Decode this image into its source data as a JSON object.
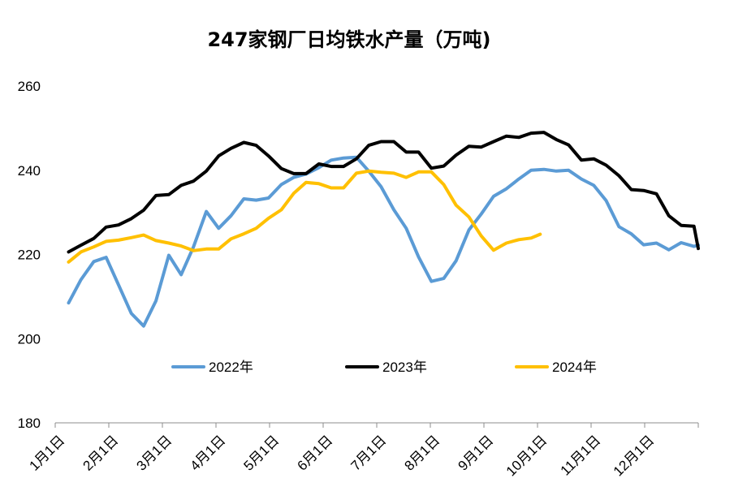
{
  "chart_data": {
    "type": "line",
    "title": "247家钢厂日均铁水产量（万吨)",
    "xlabel": "",
    "ylabel": "",
    "ylim": [
      180,
      260
    ],
    "yticks": [
      "180",
      "200",
      "220",
      "240",
      "260"
    ],
    "grid": false,
    "legend_position": "bottom-inside",
    "categories": [
      "1月1日",
      "2月1日",
      "3月1日",
      "4月1日",
      "5月1日",
      "6月1日",
      "7月1日",
      "8月1日",
      "9月1日",
      "10月1日",
      "11月1日",
      "12月1日"
    ],
    "x_domain": [
      1,
      13
    ],
    "series": [
      {
        "name": "2022年",
        "color": "#5b9bd5",
        "x": [
          1.25,
          1.48,
          1.72,
          1.95,
          2.18,
          2.42,
          2.65,
          2.88,
          3.12,
          3.35,
          3.58,
          3.82,
          4.05,
          4.28,
          4.52,
          4.75,
          4.98,
          5.22,
          5.45,
          5.68,
          5.92,
          6.15,
          6.38,
          6.62,
          6.85,
          7.08,
          7.32,
          7.55,
          7.78,
          8.02,
          8.25,
          8.48,
          8.72,
          8.95,
          9.18,
          9.42,
          9.65,
          9.88,
          10.12,
          10.35,
          10.58,
          10.82,
          11.05,
          11.28,
          11.52,
          11.75,
          11.98,
          12.22,
          12.45,
          12.68,
          12.92,
          13.0
        ],
        "values": [
          208.5,
          214.0,
          218.3,
          219.3,
          212.8,
          206.0,
          203.0,
          209.0,
          219.8,
          215.2,
          221.8,
          230.2,
          226.2,
          229.2,
          233.2,
          232.9,
          233.4,
          236.6,
          238.3,
          239.1,
          240.6,
          242.4,
          242.9,
          243.1,
          239.8,
          236.1,
          230.6,
          226.2,
          219.4,
          213.6,
          214.3,
          218.5,
          225.8,
          229.6,
          233.8,
          235.6,
          237.9,
          240.0,
          240.2,
          239.8,
          240.0,
          237.9,
          236.4,
          232.8,
          226.6,
          224.9,
          222.3,
          222.7,
          221.1,
          222.8,
          221.9,
          222.2
        ]
      },
      {
        "name": "2023年",
        "color": "#000000",
        "x": [
          1.25,
          1.48,
          1.72,
          1.95,
          2.18,
          2.42,
          2.65,
          2.88,
          3.12,
          3.35,
          3.58,
          3.82,
          4.05,
          4.28,
          4.52,
          4.75,
          4.98,
          5.22,
          5.45,
          5.68,
          5.92,
          6.15,
          6.38,
          6.62,
          6.85,
          7.08,
          7.32,
          7.55,
          7.78,
          8.02,
          8.25,
          8.48,
          8.72,
          8.95,
          9.18,
          9.42,
          9.65,
          9.88,
          10.12,
          10.35,
          10.58,
          10.82,
          11.05,
          11.28,
          11.52,
          11.75,
          11.98,
          12.22,
          12.45,
          12.68,
          12.92,
          13.0
        ],
        "values": [
          220.6,
          222.2,
          223.8,
          226.5,
          227.0,
          228.5,
          230.5,
          234.0,
          234.2,
          236.4,
          237.4,
          239.8,
          243.4,
          245.2,
          246.6,
          245.9,
          243.4,
          240.4,
          239.2,
          239.2,
          241.5,
          240.9,
          240.9,
          242.7,
          245.9,
          246.8,
          246.8,
          244.3,
          244.3,
          240.5,
          241.0,
          243.6,
          245.7,
          245.5,
          246.8,
          248.1,
          247.8,
          248.8,
          249.0,
          247.3,
          246.0,
          242.4,
          242.7,
          241.2,
          238.7,
          235.4,
          235.2,
          234.4,
          229.2,
          226.9,
          226.7,
          221.4
        ]
      },
      {
        "name": "2024年",
        "color": "#ffc000",
        "x": [
          1.25,
          1.48,
          1.72,
          1.95,
          2.18,
          2.42,
          2.65,
          2.88,
          3.12,
          3.35,
          3.58,
          3.82,
          4.05,
          4.28,
          4.52,
          4.75,
          4.98,
          5.22,
          5.45,
          5.68,
          5.92,
          6.15,
          6.38,
          6.62,
          6.85,
          7.08,
          7.32,
          7.55,
          7.78,
          8.02,
          8.25,
          8.48,
          8.72,
          8.95,
          9.18,
          9.42,
          9.65,
          9.88,
          10.05
        ],
        "values": [
          218.2,
          220.6,
          221.8,
          223.1,
          223.4,
          224.0,
          224.6,
          223.3,
          222.7,
          222.0,
          220.9,
          221.3,
          221.3,
          223.7,
          224.9,
          226.2,
          228.6,
          230.6,
          234.5,
          237.1,
          236.8,
          235.8,
          235.8,
          239.3,
          239.8,
          239.5,
          239.3,
          238.3,
          239.6,
          239.6,
          236.6,
          231.7,
          228.9,
          224.4,
          221.0,
          222.7,
          223.5,
          223.9,
          224.8
        ]
      }
    ]
  }
}
